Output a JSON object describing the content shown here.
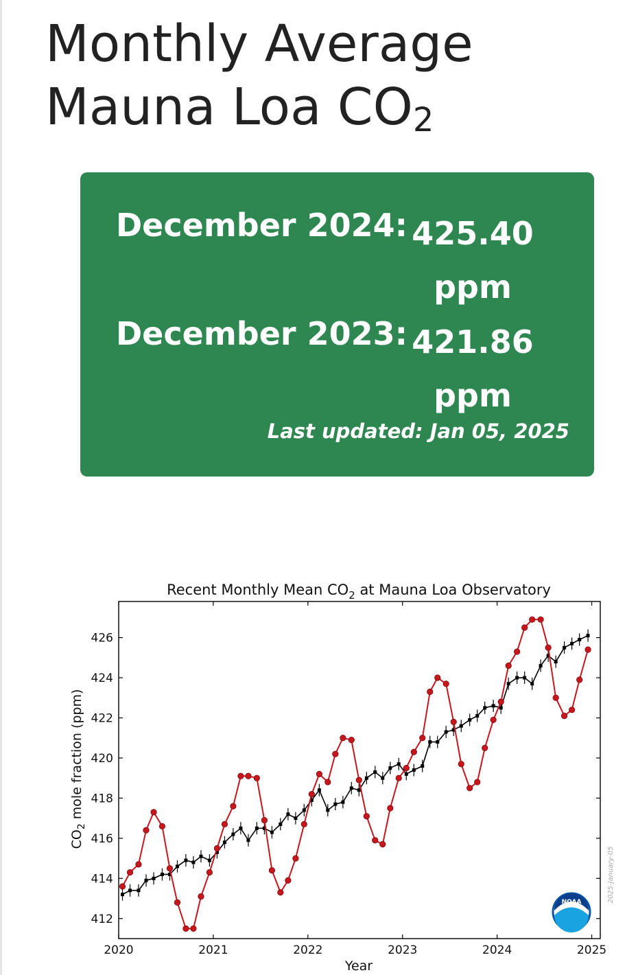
{
  "page": {
    "title": "Monthly Average Mauna Loa CO",
    "title_subscript": "2"
  },
  "stats": [
    {
      "label": "December 2024:",
      "value": "425.40",
      "unit": "ppm"
    },
    {
      "label": "December 2023:",
      "value": "421.86",
      "unit": "ppm"
    }
  ],
  "last_updated": "Last updated: Jan 05, 2025",
  "colors": {
    "card": "#2e8651",
    "monthly_series": "#c8161d",
    "trend_series": "#000000"
  },
  "chart_data": {
    "type": "line",
    "title": "Recent Monthly Mean CO",
    "title_subscript": "2",
    "title_suffix": " at Mauna Loa Observatory",
    "xlabel": "Year",
    "ylabel": "CO",
    "ylabel_subscript": "2",
    "ylabel_suffix": " mole fraction (ppm)",
    "watermark": "2025-January-05",
    "logo_text": "NOAA",
    "xlim": [
      2020.0,
      2025.09
    ],
    "ylim": [
      411.0,
      427.8
    ],
    "xticks": [
      2020,
      2021,
      2022,
      2023,
      2024,
      2025
    ],
    "yticks": [
      412,
      414,
      416,
      418,
      420,
      422,
      424,
      426
    ],
    "grid": false,
    "series": [
      {
        "style": "red-dots",
        "x": [
          2020.04,
          2020.12,
          2020.21,
          2020.29,
          2020.37,
          2020.46,
          2020.54,
          2020.62,
          2020.71,
          2020.79,
          2020.87,
          2020.96,
          2021.04,
          2021.12,
          2021.21,
          2021.29,
          2021.37,
          2021.46,
          2021.54,
          2021.62,
          2021.71,
          2021.79,
          2021.87,
          2021.96,
          2022.04,
          2022.12,
          2022.21,
          2022.29,
          2022.37,
          2022.46,
          2022.54,
          2022.62,
          2022.71,
          2022.79,
          2022.87,
          2022.96,
          2023.04,
          2023.12,
          2023.21,
          2023.29,
          2023.37,
          2023.46,
          2023.54,
          2023.62,
          2023.71,
          2023.79,
          2023.87,
          2023.96,
          2024.04,
          2024.12,
          2024.21,
          2024.29,
          2024.37,
          2024.46,
          2024.54,
          2024.62,
          2024.71,
          2024.79,
          2024.87,
          2024.96
        ],
        "values": [
          413.6,
          414.3,
          414.7,
          416.4,
          417.3,
          416.6,
          414.5,
          412.8,
          411.5,
          411.5,
          413.1,
          414.3,
          415.5,
          416.7,
          417.6,
          419.1,
          419.1,
          419.0,
          416.9,
          414.4,
          413.3,
          413.9,
          415.0,
          416.7,
          418.2,
          419.2,
          418.8,
          420.2,
          421.0,
          420.9,
          418.9,
          417.1,
          415.9,
          415.7,
          417.5,
          419.0,
          419.5,
          420.3,
          421.0,
          423.3,
          424.0,
          423.7,
          421.8,
          419.7,
          418.5,
          418.8,
          420.5,
          421.9,
          422.8,
          424.6,
          425.3,
          426.5,
          426.9,
          426.9,
          425.5,
          423.0,
          422.1,
          422.4,
          423.9,
          425.4
        ]
      },
      {
        "style": "black-trend",
        "x": [
          2020.04,
          2020.12,
          2020.21,
          2020.29,
          2020.37,
          2020.46,
          2020.54,
          2020.62,
          2020.71,
          2020.79,
          2020.87,
          2020.96,
          2021.04,
          2021.12,
          2021.21,
          2021.29,
          2021.37,
          2021.46,
          2021.54,
          2021.62,
          2021.71,
          2021.79,
          2021.87,
          2021.96,
          2022.04,
          2022.12,
          2022.21,
          2022.29,
          2022.37,
          2022.46,
          2022.54,
          2022.62,
          2022.71,
          2022.79,
          2022.87,
          2022.96,
          2023.04,
          2023.12,
          2023.21,
          2023.29,
          2023.37,
          2023.46,
          2023.54,
          2023.62,
          2023.71,
          2023.79,
          2023.87,
          2023.96,
          2024.04,
          2024.12,
          2024.21,
          2024.29,
          2024.37,
          2024.46,
          2024.54,
          2024.62,
          2024.71,
          2024.79,
          2024.87,
          2024.96
        ],
        "values": [
          413.2,
          413.4,
          413.4,
          413.9,
          414.0,
          414.2,
          414.2,
          414.6,
          414.9,
          414.8,
          415.1,
          414.9,
          415.3,
          415.8,
          416.2,
          416.5,
          415.9,
          416.5,
          416.5,
          416.3,
          416.7,
          417.2,
          417.0,
          417.4,
          417.9,
          418.4,
          417.4,
          417.7,
          417.8,
          418.5,
          418.4,
          419.0,
          419.3,
          419.0,
          419.5,
          419.7,
          419.2,
          419.4,
          419.6,
          420.8,
          420.8,
          421.3,
          421.4,
          421.6,
          421.9,
          422.1,
          422.5,
          422.6,
          422.5,
          423.7,
          424.0,
          424.0,
          423.7,
          424.6,
          425.1,
          424.8,
          425.5,
          425.7,
          425.9,
          426.1
        ]
      }
    ]
  }
}
